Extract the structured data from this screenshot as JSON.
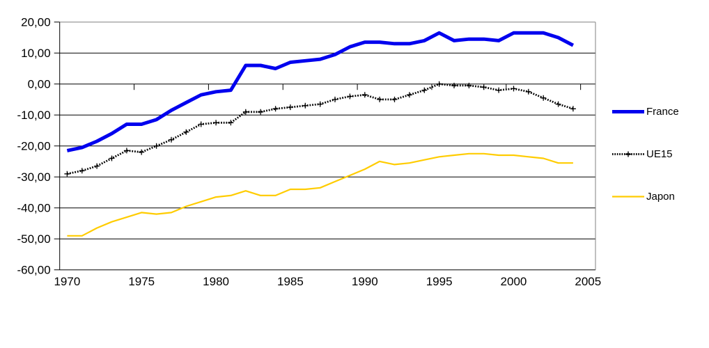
{
  "chart_data": {
    "type": "line",
    "title": "",
    "xlabel": "",
    "ylabel": "",
    "x_start_year": 1970,
    "x": [
      1970,
      1971,
      1972,
      1973,
      1974,
      1975,
      1976,
      1977,
      1978,
      1979,
      1980,
      1981,
      1982,
      1983,
      1984,
      1985,
      1986,
      1987,
      1988,
      1989,
      1990,
      1991,
      1992,
      1993,
      1994,
      1995,
      1996,
      1997,
      1998,
      1999,
      2000,
      2001,
      2002,
      2003,
      2004
    ],
    "x_tick_labels": [
      "1970",
      "1975",
      "1980",
      "1985",
      "1990",
      "1995",
      "2000",
      "2005"
    ],
    "y_ticks": [
      20,
      10,
      0,
      -10,
      -20,
      -30,
      -40,
      -50,
      -60
    ],
    "y_tick_labels": [
      "20,00",
      "10,00",
      "0,00",
      "-10,00",
      "-20,00",
      "-30,00",
      "-40,00",
      "-50,00",
      "-60,00"
    ],
    "ylim": [
      -60,
      20
    ],
    "categories_span": 36,
    "grid": "horizontal",
    "legend_position": "right",
    "series": [
      {
        "name": "France",
        "color": "#0000EE",
        "style": "solid-thick",
        "values": [
          -21.5,
          -20.5,
          -18.5,
          -16,
          -13,
          -13,
          -11.5,
          -8.5,
          -6,
          -3.5,
          -2.5,
          -2,
          6,
          6,
          5,
          7,
          7.5,
          8,
          9.5,
          12,
          13.5,
          13.5,
          13,
          13,
          14,
          16.5,
          14,
          14.5,
          14.5,
          14,
          16.5,
          16.5,
          16.5,
          15,
          12.5
        ]
      },
      {
        "name": "UE15",
        "color": "#000000",
        "style": "dotted-plus-markers",
        "values": [
          -29,
          -28,
          -26.5,
          -24,
          -21.5,
          -22,
          -20,
          -18,
          -15.5,
          -13,
          -12.5,
          -12.5,
          -9,
          -9,
          -8,
          -7.5,
          -7,
          -6.5,
          -5,
          -4,
          -3.5,
          -5,
          -5,
          -3.5,
          -2,
          0,
          -0.5,
          -0.5,
          -1,
          -2,
          -1.5,
          -2.5,
          -4.5,
          -6.5,
          -8
        ]
      },
      {
        "name": "Japon",
        "color": "#FFCC00",
        "style": "solid-thin",
        "values": [
          -49,
          -49,
          -46.5,
          -44.5,
          -43,
          -41.5,
          -42,
          -41.5,
          -39.5,
          -38,
          -36.5,
          -36,
          -34.5,
          -36,
          -36,
          -34,
          -34,
          -33.5,
          -31.5,
          -29.5,
          -27.5,
          -25,
          -26,
          -25.5,
          -24.5,
          -23.5,
          -23,
          -22.5,
          -22.5,
          -23,
          -23,
          -23.5,
          -24,
          -25.5,
          -25.5
        ]
      }
    ],
    "colors": {
      "axis": "#000000",
      "gridline": "#000000",
      "plot_border": "#808080",
      "background": "#FFFFFF",
      "tick_label": "#000000"
    }
  }
}
